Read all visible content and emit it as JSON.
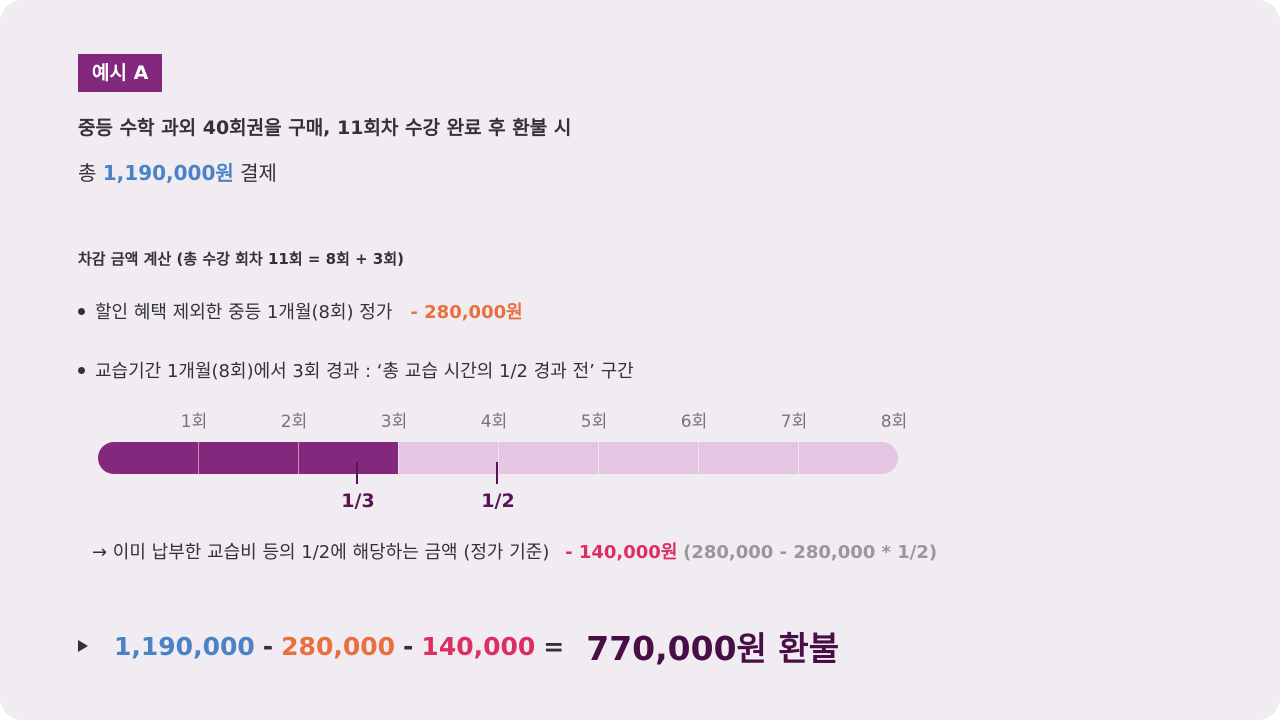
{
  "badge": "예시 A",
  "title": "중등 수학 과외 40회권을 구매, 11회차 수강 완료 후 환불 시",
  "total": {
    "prefix": "총",
    "amount": "1,190,000원",
    "suffix": "결제"
  },
  "subheading": "차감 금액 계산 (총 수강 회차 11회 = 8회 + 3회)",
  "bullets": [
    {
      "text": "할인 혜택 제외한 중등 1개월(8회) 정가",
      "amount": "- 280,000원"
    },
    {
      "text": "교습기간 1개월(8회)에서 3회 경과 : ‘총 교습 시간의 1/2 경과 전’ 구간"
    }
  ],
  "progress": {
    "sessions_total": 8,
    "sessions_done": 3,
    "fraction": 0.375,
    "ticks": [
      "1회",
      "2회",
      "3회",
      "4회",
      "5회",
      "6회",
      "7회",
      "8회"
    ],
    "markers": [
      {
        "label": "1/3"
      },
      {
        "label": "1/2"
      }
    ]
  },
  "arrow_line": {
    "text": "→ 이미 납부한 교습비 등의 1/2에 해당하는 금액 (정가 기준)",
    "amount": "- 140,000원",
    "formula": "(280,000 - 280,000 * 1/2)"
  },
  "final": {
    "a": "1,190,000",
    "minus1": "-",
    "b": "280,000",
    "minus2": "-",
    "c": "140,000",
    "eq": "=",
    "result": "770,000원 환불"
  },
  "colors": {
    "purple": "#83297d",
    "light": "#e5c6e2",
    "blue": "#4a82c6",
    "orange": "#e8703f",
    "pink": "#dd2e62"
  }
}
